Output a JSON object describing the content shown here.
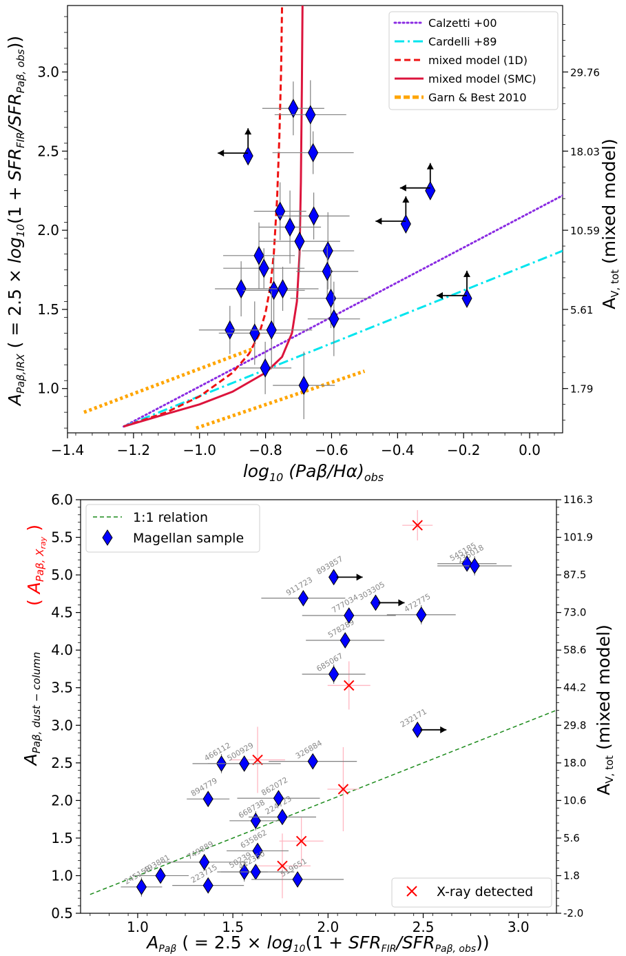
{
  "chart_data": [
    {
      "type": "scatter",
      "panel": "top",
      "xlabel": "log10 (Paβ/Hα)obs",
      "ylabel": "APaβ,IRX ( = 2.5 × log10(1 + SFRFIR/SFRPaβ,obs))",
      "y2label": "AV,tot (mixed model)",
      "xlim": [
        -1.4,
        0.1
      ],
      "ylim": [
        0.72,
        3.42
      ],
      "xticks": [
        "−1.4",
        "−1.2",
        "−1.0",
        "−0.8",
        "−0.6",
        "−0.4",
        "−0.2",
        "0.0"
      ],
      "xtick_values": [
        -1.4,
        -1.2,
        -1.0,
        -0.8,
        -0.6,
        -0.4,
        -0.2,
        0.0
      ],
      "yticks": [
        "1.0",
        "1.5",
        "2.0",
        "2.5",
        "3.0"
      ],
      "ytick_values": [
        1.0,
        1.5,
        2.0,
        2.5,
        3.0
      ],
      "y2ticks": [
        "1.79",
        "5.61",
        "10.59",
        "18.03",
        "29.76"
      ],
      "y2tick_values": [
        1.0,
        1.5,
        2.0,
        2.5,
        3.0
      ],
      "grid": false,
      "legend_position": "top-right",
      "legend": [
        {
          "name": "Calzetti +00",
          "color": "#8a2be2",
          "style": "dotted"
        },
        {
          "name": "Cardelli +89",
          "color": "#00e5ee",
          "style": "dashdot"
        },
        {
          "name": "mixed model (1D)",
          "color": "#ee1111",
          "style": "dashed"
        },
        {
          "name": "mixed model (SMC)",
          "color": "#dc143c",
          "style": "solid"
        },
        {
          "name": "Garn & Best 2010",
          "color": "#ffa500",
          "style": "dashed"
        }
      ],
      "lines": [
        {
          "name": "Calzetti +00",
          "x": [
            -1.23,
            0.1
          ],
          "y": [
            0.76,
            2.22
          ]
        },
        {
          "name": "Cardelli +89",
          "x": [
            -1.23,
            0.1
          ],
          "y": [
            0.76,
            1.87
          ]
        },
        {
          "name": "mixed model (1D)",
          "x": [
            -1.23,
            -1.1,
            -1.0,
            -0.9,
            -0.85,
            -0.82,
            -0.8,
            -0.785,
            -0.775,
            -0.765,
            -0.758,
            -0.753,
            -0.75
          ],
          "y": [
            0.76,
            0.85,
            0.95,
            1.1,
            1.22,
            1.34,
            1.48,
            1.65,
            1.85,
            2.2,
            2.6,
            3.0,
            3.42
          ]
        },
        {
          "name": "mixed model (SMC)",
          "x": [
            -1.23,
            -1.1,
            -1.0,
            -0.9,
            -0.8,
            -0.75,
            -0.72,
            -0.705,
            -0.697,
            -0.693,
            -0.69,
            -0.688
          ],
          "y": [
            0.76,
            0.84,
            0.9,
            0.98,
            1.1,
            1.2,
            1.35,
            1.55,
            1.85,
            2.3,
            2.9,
            3.42
          ]
        },
        {
          "name": "Garn & Best 2010 (centre)",
          "x": [
            -1.35,
            -0.84
          ],
          "y": [
            0.85,
            1.25
          ]
        },
        {
          "name": "Garn & Best 2010 (lower)",
          "x": [
            -1.01,
            -0.5
          ],
          "y": [
            0.75,
            1.11
          ]
        }
      ],
      "points": [
        {
          "x": -0.853,
          "y": 2.47,
          "limit": true
        },
        {
          "x": -0.716,
          "y": 2.77
        },
        {
          "x": -0.664,
          "y": 2.73
        },
        {
          "x": -0.656,
          "y": 2.49
        },
        {
          "x": -0.756,
          "y": 2.12
        },
        {
          "x": -0.726,
          "y": 2.02
        },
        {
          "x": -0.654,
          "y": 2.09
        },
        {
          "x": -0.697,
          "y": 1.93
        },
        {
          "x": -0.611,
          "y": 1.87
        },
        {
          "x": -0.613,
          "y": 1.74
        },
        {
          "x": -0.82,
          "y": 1.84
        },
        {
          "x": -0.805,
          "y": 1.76
        },
        {
          "x": -0.874,
          "y": 1.63
        },
        {
          "x": -0.775,
          "y": 1.62
        },
        {
          "x": -0.748,
          "y": 1.63
        },
        {
          "x": -0.602,
          "y": 1.57
        },
        {
          "x": -0.593,
          "y": 1.44
        },
        {
          "x": -0.908,
          "y": 1.37
        },
        {
          "x": -0.833,
          "y": 1.35
        },
        {
          "x": -0.782,
          "y": 1.37
        },
        {
          "x": -0.801,
          "y": 1.13
        },
        {
          "x": -0.684,
          "y": 1.02
        },
        {
          "x": -0.375,
          "y": 2.04,
          "limit": true
        },
        {
          "x": -0.301,
          "y": 2.25,
          "limit": true
        },
        {
          "x": -0.19,
          "y": 1.57,
          "limit": true
        }
      ]
    },
    {
      "type": "scatter",
      "panel": "bottom",
      "xlabel": "APaβ ( = 2.5 × log10(1 + SFRFIR/SFRPaβ,obs))",
      "ylabel": "APaβ,dust−column",
      "ylabel_red": "( APaβ,Xray )",
      "y2label": "AV,tot (mixed model)",
      "xlim": [
        0.7,
        3.2
      ],
      "ylim": [
        0.5,
        6.0
      ],
      "xticks": [
        "1.0",
        "1.5",
        "2.0",
        "2.5",
        "3.0"
      ],
      "xtick_values": [
        1.0,
        1.5,
        2.0,
        2.5,
        3.0
      ],
      "yticks": [
        "0.5",
        "1.0",
        "1.5",
        "2.0",
        "2.5",
        "3.0",
        "3.5",
        "4.0",
        "4.5",
        "5.0",
        "5.5",
        "6.0"
      ],
      "ytick_values": [
        0.5,
        1.0,
        1.5,
        2.0,
        2.5,
        3.0,
        3.5,
        4.0,
        4.5,
        5.0,
        5.5,
        6.0
      ],
      "y2ticks": [
        "-2.0",
        "1.8",
        "5.6",
        "10.6",
        "18.0",
        "29.8",
        "44.2",
        "58.6",
        "73.0",
        "87.5",
        "101.9",
        "116.3"
      ],
      "y2tick_values": [
        0.5,
        1.0,
        1.5,
        2.0,
        2.5,
        3.0,
        3.5,
        4.0,
        4.5,
        5.0,
        5.5,
        6.0
      ],
      "grid": false,
      "legend": [
        {
          "name": "1:1 relation",
          "color": "#1a8a1a",
          "style": "dashed",
          "position": "top-left"
        },
        {
          "name": "Magellan sample",
          "color": "#0000ff",
          "marker": "diamond",
          "position": "top-left"
        },
        {
          "name": "X-ray detected",
          "color": "#ff0000",
          "marker": "x",
          "position": "bottom-right"
        }
      ],
      "line_1to1": {
        "x": [
          0.75,
          3.2
        ],
        "y": [
          0.75,
          3.2
        ]
      },
      "points": [
        {
          "id": "245158",
          "x": 1.02,
          "y": 0.85
        },
        {
          "id": "493881",
          "x": 1.12,
          "y": 1.0
        },
        {
          "id": "223715",
          "x": 1.37,
          "y": 0.87
        },
        {
          "id": "749889",
          "x": 1.35,
          "y": 1.18
        },
        {
          "id": "50239",
          "x": 1.56,
          "y": 1.05
        },
        {
          "id": "635862",
          "x": 1.63,
          "y": 1.33
        },
        {
          "id": "412350",
          "x": 1.62,
          "y": 1.05
        },
        {
          "id": "519651",
          "x": 1.84,
          "y": 0.95
        },
        {
          "id": "668738",
          "x": 1.62,
          "y": 1.73
        },
        {
          "id": "224723",
          "x": 1.76,
          "y": 1.78
        },
        {
          "id": "862072",
          "x": 1.74,
          "y": 2.03
        },
        {
          "id": "894779",
          "x": 1.37,
          "y": 2.02
        },
        {
          "id": "466112",
          "x": 1.44,
          "y": 2.49
        },
        {
          "id": "500929",
          "x": 1.56,
          "y": 2.49
        },
        {
          "id": "326884",
          "x": 1.92,
          "y": 2.52
        },
        {
          "id": "232171",
          "x": 2.47,
          "y": 2.94,
          "limit": true
        },
        {
          "id": "685067",
          "x": 2.03,
          "y": 3.68
        },
        {
          "id": "578289",
          "x": 2.09,
          "y": 4.13
        },
        {
          "id": "777034",
          "x": 2.11,
          "y": 4.46
        },
        {
          "id": "303305",
          "x": 2.25,
          "y": 4.63,
          "limit": true
        },
        {
          "id": "472775",
          "x": 2.49,
          "y": 4.47
        },
        {
          "id": "911723",
          "x": 1.87,
          "y": 4.69
        },
        {
          "id": "893857",
          "x": 2.03,
          "y": 4.97,
          "limit": true
        },
        {
          "id": "545185",
          "x": 2.73,
          "y": 5.15
        },
        {
          "id": "235018",
          "x": 2.77,
          "y": 5.12
        }
      ],
      "xray_points": [
        {
          "x": 2.47,
          "y": 5.66
        },
        {
          "x": 2.11,
          "y": 3.53
        },
        {
          "x": 1.63,
          "y": 2.54
        },
        {
          "x": 2.08,
          "y": 2.15
        },
        {
          "x": 1.86,
          "y": 1.46
        },
        {
          "x": 1.76,
          "y": 1.13
        }
      ]
    }
  ]
}
